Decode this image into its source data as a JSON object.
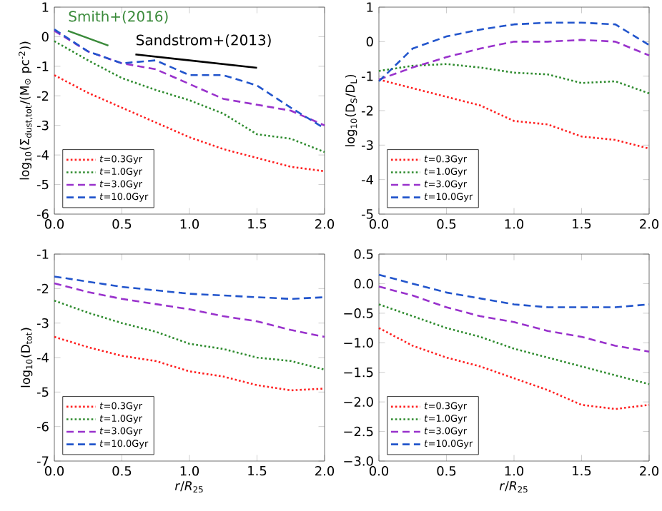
{
  "chart_data": [
    {
      "type": "line",
      "ylabel": "log$_{10}$(Σ$_{dust,tot}$/(M$_{⊙}$ pc$^{-2}$))",
      "x": [
        0,
        0.25,
        0.5,
        0.75,
        1.0,
        1.25,
        1.5,
        1.75,
        2.0
      ],
      "xlim": [
        0,
        2
      ],
      "ylim": [
        -6,
        1
      ],
      "xticks": [
        {
          "value": 0,
          "label": "0.0"
        },
        {
          "value": 0.5,
          "label": "0.5"
        },
        {
          "value": 1,
          "label": "1.0"
        },
        {
          "value": 1.5,
          "label": "1.5"
        },
        {
          "value": 2,
          "label": "2.0"
        }
      ],
      "yticks": [
        -6,
        -5,
        -4,
        -3,
        -2,
        -1,
        0,
        1
      ],
      "legend": "bottom left",
      "grid": false,
      "series": [
        {
          "name": "*t*=0.3Gyr",
          "color": "#ff2020",
          "line_style": "dotted",
          "values": [
            -1.3,
            -1.9,
            -2.4,
            -2.9,
            -3.4,
            -3.8,
            -4.1,
            -4.4,
            -4.55
          ]
        },
        {
          "name": "*t*=1.0Gyr",
          "color": "#2e8b2e",
          "line_style": "dotted",
          "values": [
            -0.15,
            -0.8,
            -1.4,
            -1.8,
            -2.15,
            -2.6,
            -3.3,
            -3.45,
            -3.9
          ]
        },
        {
          "name": "*t*=3.0Gyr",
          "color": "#9932cc",
          "line_style": "dashed",
          "values": [
            0.2,
            -0.5,
            -0.9,
            -1.1,
            -1.6,
            -2.1,
            -2.3,
            -2.5,
            -3.0
          ]
        },
        {
          "name": "*t*=10.0Gyr",
          "color": "#2255cc",
          "line_style": "dashed",
          "values": [
            0.25,
            -0.5,
            -0.9,
            -0.8,
            -1.3,
            -1.3,
            -1.65,
            -2.4,
            -3.1
          ]
        },
        {
          "name": "Smith+(2016)",
          "color": "#3a8a3a",
          "line_style": "solid",
          "x": [
            0.1,
            0.4
          ],
          "values": [
            0.2,
            -0.3
          ]
        },
        {
          "name": "Sandstrom+(2013)",
          "color": "#000000",
          "line_style": "solid",
          "x": [
            0.6,
            1.5
          ],
          "values": [
            -0.6,
            -1.05
          ]
        }
      ]
    },
    {
      "type": "line",
      "ylabel": "log$_{10}$(D$_{S}$/D$_{L}$)",
      "x": [
        0,
        0.25,
        0.5,
        0.75,
        1.0,
        1.25,
        1.5,
        1.75,
        2.0
      ],
      "xlim": [
        0,
        2
      ],
      "ylim": [
        -5,
        1
      ],
      "xticks": [
        {
          "value": 0,
          "label": "0.0"
        },
        {
          "value": 0.5,
          "label": "0.5"
        },
        {
          "value": 1,
          "label": "1.0"
        },
        {
          "value": 1.5,
          "label": "1.5"
        },
        {
          "value": 2,
          "label": "2.0"
        }
      ],
      "yticks": [
        -5,
        -4,
        -3,
        -2,
        -1,
        0,
        1
      ],
      "legend": "bottom left",
      "grid": false,
      "series": [
        {
          "name": "*t*=0.3Gyr",
          "color": "#ff2020",
          "line_style": "dotted",
          "values": [
            -1.1,
            -1.35,
            -1.6,
            -1.85,
            -2.3,
            -2.4,
            -2.75,
            -2.85,
            -3.1
          ]
        },
        {
          "name": "*t*=1.0Gyr",
          "color": "#2e8b2e",
          "line_style": "dotted",
          "values": [
            -0.85,
            -0.7,
            -0.65,
            -0.75,
            -0.9,
            -0.95,
            -1.2,
            -1.15,
            -1.5
          ]
        },
        {
          "name": "*t*=3.0Gyr",
          "color": "#9932cc",
          "line_style": "dashed",
          "values": [
            -1.1,
            -0.75,
            -0.45,
            -0.2,
            0.0,
            0.0,
            0.05,
            0.0,
            -0.4
          ]
        },
        {
          "name": "*t*=10.0Gyr",
          "color": "#2255cc",
          "line_style": "dashed",
          "values": [
            -1.15,
            -0.2,
            0.15,
            0.35,
            0.5,
            0.55,
            0.55,
            0.5,
            -0.1
          ]
        }
      ]
    },
    {
      "type": "line",
      "xlabel": "*r*/*R*$_{25}$",
      "ylabel": "log$_{10}$(D$_{tot}$)",
      "x": [
        0,
        0.25,
        0.5,
        0.75,
        1.0,
        1.25,
        1.5,
        1.75,
        2.0
      ],
      "xlim": [
        0,
        2
      ],
      "ylim": [
        -7,
        -1
      ],
      "xticks": [
        {
          "value": 0,
          "label": "0.0"
        },
        {
          "value": 0.5,
          "label": "0.5"
        },
        {
          "value": 1,
          "label": "1.0"
        },
        {
          "value": 1.5,
          "label": "1.5"
        },
        {
          "value": 2,
          "label": "2.0"
        }
      ],
      "yticks": [
        -7,
        -6,
        -5,
        -4,
        -3,
        -2,
        -1
      ],
      "legend": "bottom left",
      "grid": false,
      "series": [
        {
          "name": "*t*=0.3Gyr",
          "color": "#ff2020",
          "line_style": "dotted",
          "values": [
            -3.4,
            -3.7,
            -3.95,
            -4.1,
            -4.4,
            -4.55,
            -4.8,
            -4.95,
            -4.9
          ]
        },
        {
          "name": "*t*=1.0Gyr",
          "color": "#2e8b2e",
          "line_style": "dotted",
          "values": [
            -2.35,
            -2.7,
            -3.0,
            -3.25,
            -3.6,
            -3.75,
            -4.0,
            -4.1,
            -4.35
          ]
        },
        {
          "name": "*t*=3.0Gyr",
          "color": "#9932cc",
          "line_style": "dashed",
          "values": [
            -1.85,
            -2.1,
            -2.3,
            -2.45,
            -2.6,
            -2.8,
            -2.95,
            -3.2,
            -3.4
          ]
        },
        {
          "name": "*t*=10.0Gyr",
          "color": "#2255cc",
          "line_style": "dashed",
          "values": [
            -1.65,
            -1.8,
            -1.95,
            -2.05,
            -2.15,
            -2.2,
            -2.25,
            -2.3,
            -2.25
          ]
        }
      ]
    },
    {
      "type": "line",
      "xlabel": "*r*/*R*$_{25}$",
      "x": [
        0,
        0.25,
        0.5,
        0.75,
        1.0,
        1.25,
        1.5,
        1.75,
        2.0
      ],
      "xlim": [
        0,
        2
      ],
      "ylim": [
        -3,
        0.5
      ],
      "xticks": [
        {
          "value": 0,
          "label": "0.0"
        },
        {
          "value": 0.5,
          "label": "0.5"
        },
        {
          "value": 1,
          "label": "1.0"
        },
        {
          "value": 1.5,
          "label": "1.5"
        },
        {
          "value": 2,
          "label": "2.0"
        }
      ],
      "yticks": [
        {
          "value": -3,
          "label": "−3.0"
        },
        {
          "value": -2.5,
          "label": "−2.5"
        },
        {
          "value": -2,
          "label": "−2.0"
        },
        {
          "value": -1.5,
          "label": "−1.5"
        },
        {
          "value": -1,
          "label": "−1.0"
        },
        {
          "value": -0.5,
          "label": "−0.5"
        },
        {
          "value": 0,
          "label": "0.0"
        },
        {
          "value": 0.5,
          "label": "0.5"
        }
      ],
      "legend": "bottom left",
      "grid": false,
      "series": [
        {
          "name": "*t*=0.3Gyr",
          "color": "#ff2020",
          "line_style": "dotted",
          "values": [
            -0.75,
            -1.05,
            -1.25,
            -1.4,
            -1.6,
            -1.8,
            -2.05,
            -2.12,
            -2.05
          ]
        },
        {
          "name": "*t*=1.0Gyr",
          "color": "#2e8b2e",
          "line_style": "dotted",
          "values": [
            -0.35,
            -0.55,
            -0.75,
            -0.9,
            -1.1,
            -1.25,
            -1.4,
            -1.55,
            -1.7
          ]
        },
        {
          "name": "*t*=3.0Gyr",
          "color": "#9932cc",
          "line_style": "dashed",
          "values": [
            -0.05,
            -0.2,
            -0.4,
            -0.55,
            -0.65,
            -0.8,
            -0.9,
            -1.05,
            -1.15
          ]
        },
        {
          "name": "*t*=10.0Gyr",
          "color": "#2255cc",
          "line_style": "dashed",
          "values": [
            0.15,
            0.0,
            -0.15,
            -0.25,
            -0.35,
            -0.4,
            -0.4,
            -0.4,
            -0.35
          ]
        }
      ]
    }
  ]
}
